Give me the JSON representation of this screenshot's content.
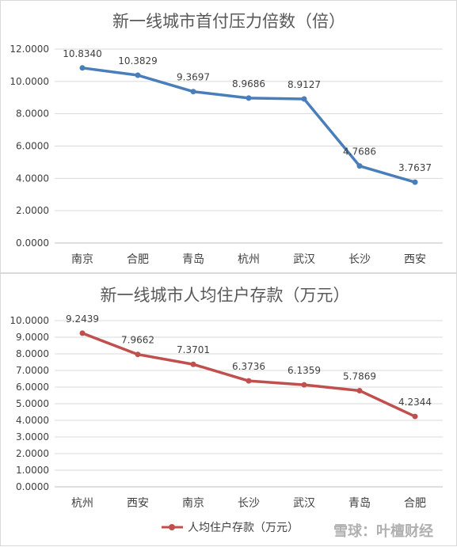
{
  "chart_data": [
    {
      "type": "line",
      "title": "新一线城市首付压力倍数（倍）",
      "categories": [
        "南京",
        "合肥",
        "青岛",
        "杭州",
        "武汉",
        "长沙",
        "西安"
      ],
      "series": [
        {
          "values": [
            10.834,
            10.3829,
            9.3697,
            8.9686,
            8.9127,
            4.7686,
            3.7637
          ],
          "labels": [
            "10.8340",
            "10.3829",
            "9.3697",
            "8.9686",
            "8.9127",
            "4.7686",
            "3.7637"
          ],
          "color": "#4a7ebb"
        }
      ],
      "y_ticks": [
        "12.0000",
        "10.0000",
        "8.0000",
        "6.0000",
        "4.0000",
        "2.0000",
        "0.0000"
      ],
      "ylim": [
        0,
        12
      ],
      "grid": true
    },
    {
      "type": "line",
      "title": "新一线城市人均住户存款（万元）",
      "categories": [
        "杭州",
        "西安",
        "南京",
        "长沙",
        "武汉",
        "青岛",
        "合肥"
      ],
      "series": [
        {
          "name": "人均住户存款（万元）",
          "values": [
            9.2439,
            7.9662,
            7.3701,
            6.3736,
            6.1359,
            5.7869,
            4.2344
          ],
          "labels": [
            "9.2439",
            "7.9662",
            "7.3701",
            "6.3736",
            "6.1359",
            "5.7869",
            "4.2344"
          ],
          "color": "#c0504d"
        }
      ],
      "y_ticks": [
        "10.0000",
        "9.0000",
        "8.0000",
        "7.0000",
        "6.0000",
        "5.0000",
        "4.0000",
        "3.0000",
        "2.0000",
        "1.0000",
        "0.0000"
      ],
      "ylim": [
        0,
        10
      ],
      "grid": true,
      "legend": "bottom"
    }
  ],
  "watermark": "雪球：叶檀财经",
  "colors": {
    "grid": "#d9d9d9",
    "axis": "#bfbfbf"
  }
}
